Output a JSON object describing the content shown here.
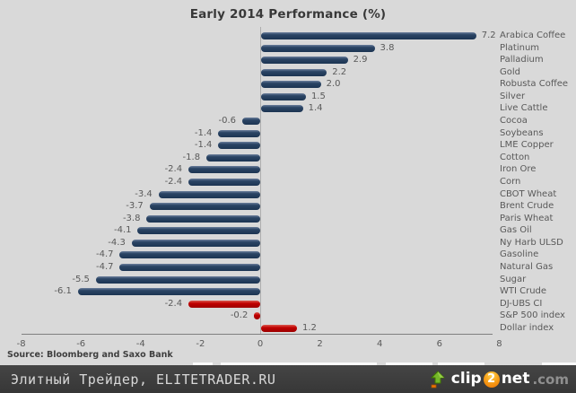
{
  "chart": {
    "title": "Early 2014 Performance (%)",
    "source": "Source: Bloomberg and Saxo Bank"
  },
  "chart_data": {
    "type": "bar",
    "orientation": "horizontal",
    "title": "Early 2014 Performance (%)",
    "xlabel": "",
    "ylabel": "",
    "xlim": [
      -8,
      8
    ],
    "x_ticks": [
      -8,
      -6,
      -4,
      -2,
      0,
      2,
      4,
      6,
      8
    ],
    "grid": false,
    "value_labels_shown": true,
    "categories": [
      "Arabica Coffee",
      "Platinum",
      "Palladium",
      "Gold",
      "Robusta Coffee",
      "Silver",
      "Live Cattle",
      "Cocoa",
      "Soybeans",
      "LME Copper",
      "Cotton",
      "Iron Ore",
      "Corn",
      "CBOT Wheat",
      "Brent Crude",
      "Paris Wheat",
      "Gas Oil",
      "Ny Harb ULSD",
      "Gasoline",
      "Natural Gas",
      "Sugar",
      "WTI Crude",
      "DJ-UBS CI",
      "S&P 500 index",
      "Dollar index"
    ],
    "values": [
      7.2,
      3.8,
      2.9,
      2.2,
      2.0,
      1.5,
      1.4,
      -0.6,
      -1.4,
      -1.4,
      -1.8,
      -2.4,
      -2.4,
      -3.4,
      -3.7,
      -3.8,
      -4.1,
      -4.3,
      -4.7,
      -4.7,
      -5.5,
      -6.1,
      -2.4,
      -0.2,
      1.2
    ],
    "bar_colors": [
      "navy",
      "navy",
      "navy",
      "navy",
      "navy",
      "navy",
      "navy",
      "navy",
      "navy",
      "navy",
      "navy",
      "navy",
      "navy",
      "navy",
      "navy",
      "navy",
      "navy",
      "navy",
      "navy",
      "navy",
      "navy",
      "navy",
      "red",
      "red",
      "red"
    ],
    "colors": {
      "navy": "#24405f",
      "red": "#c00000"
    },
    "source": "Source: Bloomberg and Saxo Bank"
  },
  "footer": {
    "site_label": "Элитный Трейдер, ELITETRADER.RU",
    "logo": {
      "part1": "clip",
      "part2": "2",
      "part3": "net",
      "part4": ".com",
      "icon": "upload-arrow-icon",
      "accent_orange": "#ef7300",
      "accent_green": "#76b82a"
    }
  }
}
